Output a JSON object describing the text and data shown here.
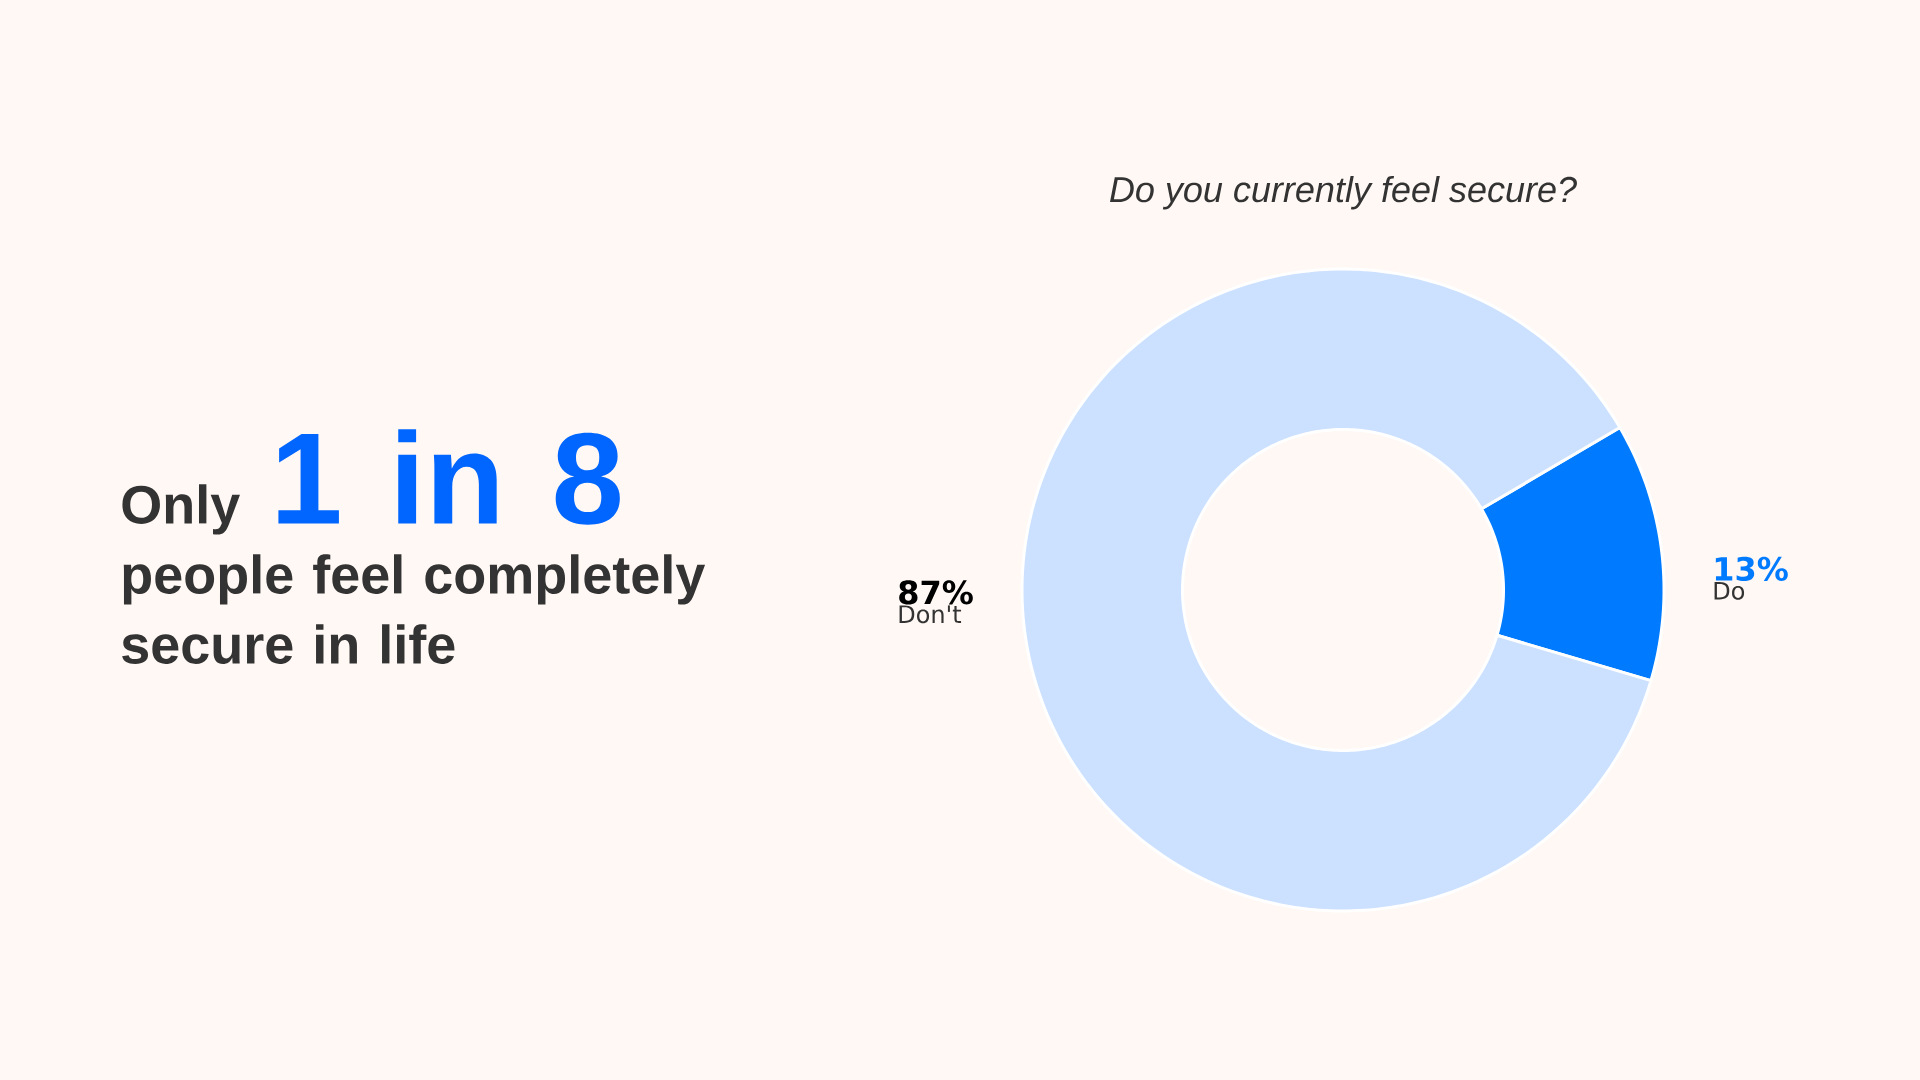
{
  "chart_data": {
    "type": "donut",
    "title": "Only **1 in 8** people feel completely secure in life",
    "subtitle": "Do you currently feel secure?",
    "categories": [
      "Do",
      "Don't"
    ],
    "values": [
      13,
      87
    ],
    "colors": [
      "#007bff",
      "#cce0ff"
    ],
    "value_labels": [
      "13%",
      "87%"
    ]
  }
}
